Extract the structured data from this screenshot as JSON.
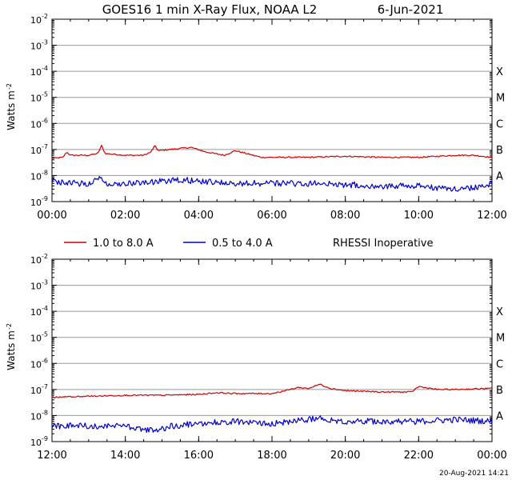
{
  "title": "GOES16 1 min X-Ray Flux, NOAA L2",
  "date": "6-Jun-2021",
  "footer_timestamp": "20-Aug-2021 14:21",
  "ylabel_main": "Watts m",
  "ylabel_exp": "-2",
  "y_ticks": [
    {
      "base": "10",
      "exp": "-9",
      "value": 1e-09
    },
    {
      "base": "10",
      "exp": "-8",
      "value": 1e-08
    },
    {
      "base": "10",
      "exp": "-7",
      "value": 1e-07
    },
    {
      "base": "10",
      "exp": "-6",
      "value": 1e-06
    },
    {
      "base": "10",
      "exp": "-5",
      "value": 1e-05
    },
    {
      "base": "10",
      "exp": "-4",
      "value": 0.0001
    },
    {
      "base": "10",
      "exp": "-3",
      "value": 0.001
    },
    {
      "base": "10",
      "exp": "-2",
      "value": 0.01
    }
  ],
  "flare_classes": [
    {
      "label": "A",
      "value": 1e-08
    },
    {
      "label": "B",
      "value": 1e-07
    },
    {
      "label": "C",
      "value": 1e-06
    },
    {
      "label": "M",
      "value": 1e-05
    },
    {
      "label": "X",
      "value": 0.0001
    }
  ],
  "legend": [
    {
      "label": "1.0 to 8.0 A",
      "color": "#d40000"
    },
    {
      "label": "0.5 to 4.0 A",
      "color": "#0000cc"
    }
  ],
  "note": "RHESSI Inoperative",
  "chart_data": [
    {
      "type": "line",
      "y_scale": "log",
      "ylim": [
        1e-09,
        0.01
      ],
      "grid": true,
      "x_range": [
        "00:00",
        "12:00"
      ],
      "x_ticks": [
        "00:00",
        "02:00",
        "04:00",
        "06:00",
        "08:00",
        "10:00",
        "12:00"
      ],
      "series": [
        {
          "name": "1.0 to 8.0 A",
          "color": "#d40000",
          "x": [
            0,
            0.3,
            0.4,
            0.5,
            1.0,
            1.25,
            1.35,
            1.45,
            2.0,
            2.5,
            2.7,
            2.8,
            2.9,
            3.2,
            3.5,
            3.8,
            4.2,
            4.7,
            5.0,
            5.3,
            5.7,
            6.0,
            7.0,
            8.0,
            9.0,
            10.0,
            11.0,
            11.5,
            12.0
          ],
          "y": [
            4.5e-08,
            5e-08,
            8e-08,
            6e-08,
            6e-08,
            7e-08,
            1.4e-07,
            7e-08,
            6e-08,
            6e-08,
            8e-08,
            1.4e-07,
            9e-08,
            1e-07,
            1.1e-07,
            1.2e-07,
            8e-08,
            6e-08,
            9e-08,
            7e-08,
            5e-08,
            5e-08,
            5e-08,
            5.5e-08,
            5e-08,
            5e-08,
            6e-08,
            6e-08,
            5e-08
          ]
        },
        {
          "name": "0.5 to 4.0 A",
          "color": "#0000cc",
          "x": [
            0,
            0.5,
            1.0,
            1.3,
            1.4,
            2.0,
            3.0,
            3.5,
            4.0,
            5.0,
            6.0,
            7.0,
            8.0,
            9.0,
            10.0,
            10.5,
            11.0,
            11.5,
            12.0
          ],
          "y": [
            6e-09,
            5e-09,
            5e-09,
            9e-09,
            5e-09,
            5e-09,
            6e-09,
            7e-09,
            6e-09,
            5e-09,
            5e-09,
            5e-09,
            4.5e-09,
            4e-09,
            4e-09,
            3.5e-09,
            3e-09,
            3.5e-09,
            5e-09
          ]
        }
      ]
    },
    {
      "type": "line",
      "y_scale": "log",
      "ylim": [
        1e-09,
        0.01
      ],
      "grid": true,
      "x_range": [
        "12:00",
        "00:00"
      ],
      "x_ticks": [
        "12:00",
        "14:00",
        "16:00",
        "18:00",
        "20:00",
        "22:00",
        "00:00"
      ],
      "series": [
        {
          "name": "1.0 to 8.0 A",
          "color": "#d40000",
          "x": [
            12.0,
            13.0,
            14.0,
            15.0,
            16.0,
            16.5,
            17.0,
            18.0,
            18.5,
            18.7,
            19.0,
            19.3,
            19.6,
            20.0,
            21.0,
            21.8,
            22.0,
            22.5,
            23.0,
            24.0
          ],
          "y": [
            5e-08,
            5.5e-08,
            6e-08,
            6e-08,
            6.5e-08,
            7.5e-08,
            7e-08,
            7e-08,
            1e-07,
            1.2e-07,
            1.1e-07,
            1.6e-07,
            1.1e-07,
            9e-08,
            8e-08,
            8e-08,
            1.3e-07,
            1e-07,
            1e-07,
            1.1e-07
          ]
        },
        {
          "name": "0.5 to 4.0 A",
          "color": "#0000cc",
          "x": [
            12.0,
            13.0,
            14.0,
            14.8,
            15.0,
            15.3,
            16.0,
            17.0,
            18.0,
            19.0,
            19.2,
            20.0,
            21.0,
            22.0,
            23.0,
            24.0
          ],
          "y": [
            4e-09,
            4e-09,
            4e-09,
            2.5e-09,
            3e-09,
            4e-09,
            5e-09,
            6e-09,
            5e-09,
            7e-09,
            8e-09,
            6e-09,
            6e-09,
            6e-09,
            7e-09,
            6e-09
          ]
        }
      ]
    }
  ]
}
